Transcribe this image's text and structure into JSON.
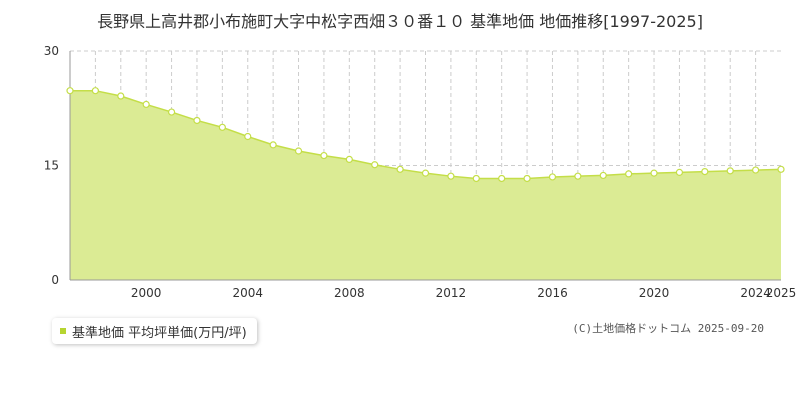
{
  "colors": {
    "area_fill": "#dbeb94",
    "line": "#c4de48",
    "marker_fill": "#ffffff",
    "grid": "#cccccc",
    "axis": "#999999",
    "legend_marker": "#b6d531"
  },
  "legend": {
    "label": "基準地価 平均坪単価(万円/坪)"
  },
  "copyright": "(C)土地価格ドットコム 2025-09-20",
  "chart_data": {
    "type": "area",
    "title": "長野県上高井郡小布施町大字中松字西畑３０番１０ 基準地価 地価推移[1997-2025]",
    "xlabel": "",
    "ylabel": "",
    "xlim": [
      1997,
      2025
    ],
    "ylim": [
      0,
      30
    ],
    "y_ticks": [
      0,
      15,
      30
    ],
    "x_ticks": [
      2000,
      2004,
      2008,
      2012,
      2016,
      2020,
      2024,
      2025
    ],
    "grid": true,
    "legend_position": "bottom-left",
    "series": [
      {
        "name": "基準地価 平均坪単価(万円/坪)",
        "x": [
          1997,
          1998,
          1999,
          2000,
          2001,
          2002,
          2003,
          2004,
          2005,
          2006,
          2007,
          2008,
          2009,
          2010,
          2011,
          2012,
          2013,
          2014,
          2015,
          2016,
          2017,
          2018,
          2019,
          2020,
          2021,
          2022,
          2023,
          2024,
          2025
        ],
        "values": [
          24.8,
          24.8,
          24.1,
          23.0,
          22.0,
          20.9,
          20.0,
          18.8,
          17.7,
          16.9,
          16.3,
          15.8,
          15.1,
          14.5,
          14.0,
          13.6,
          13.3,
          13.3,
          13.3,
          13.5,
          13.6,
          13.7,
          13.9,
          14.0,
          14.1,
          14.2,
          14.3,
          14.4,
          14.5
        ]
      }
    ]
  }
}
